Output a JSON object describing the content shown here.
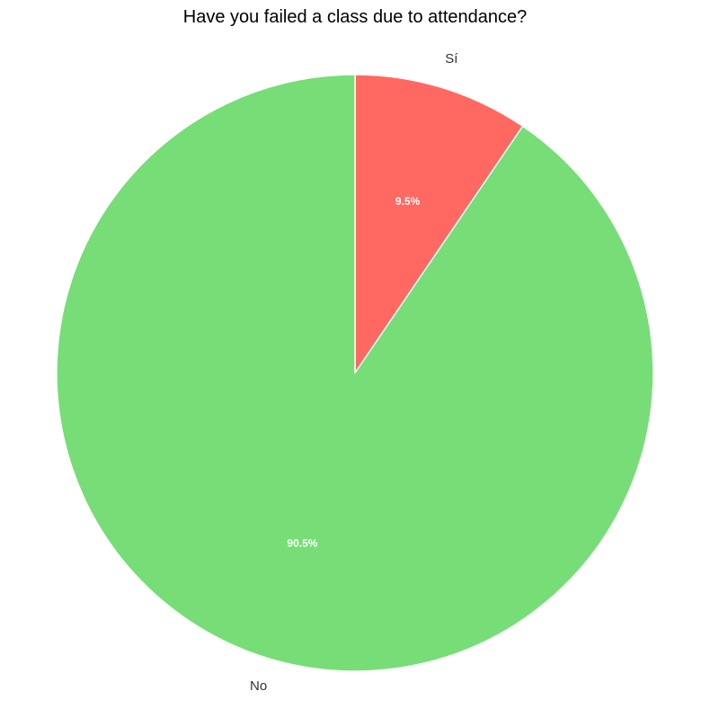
{
  "chart_data": {
    "type": "pie",
    "title": "Have you failed a class due to attendance?",
    "start_angle_deg": 90,
    "direction": "clockwise",
    "slices": [
      {
        "label": "Sí",
        "value": 9.5,
        "pct_label": "9.5%",
        "color": "#ff6961"
      },
      {
        "label": "No",
        "value": 90.5,
        "pct_label": "90.5%",
        "color": "#77dd77"
      }
    ],
    "edge_color": "#ffffff",
    "legend": "none"
  }
}
